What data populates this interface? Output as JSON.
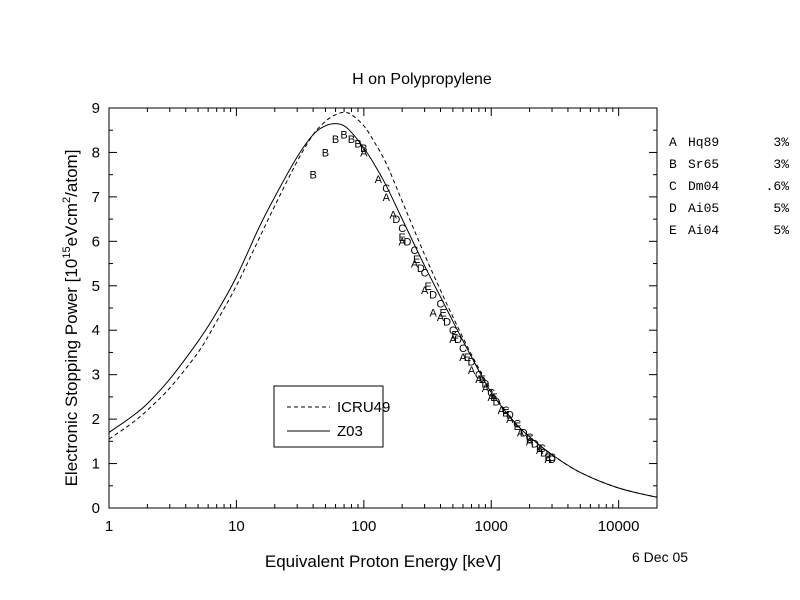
{
  "chart_data": {
    "type": "line",
    "title": "H on Polypropylene",
    "xlabel": "Equivalent Proton Energy [keV]",
    "ylabel_parts": [
      "Electronic Stopping Power [10",
      "15",
      "eVcm",
      "2",
      "/atom]"
    ],
    "x_scale": "log",
    "xlim": [
      1,
      20000
    ],
    "ylim": [
      0,
      9
    ],
    "x_ticks": [
      {
        "value": 1,
        "label": "1"
      },
      {
        "value": 10,
        "label": "10"
      },
      {
        "value": 100,
        "label": "100"
      },
      {
        "value": 1000,
        "label": "1000"
      },
      {
        "value": 10000,
        "label": "10000"
      }
    ],
    "y_ticks": [
      0,
      1,
      2,
      3,
      4,
      5,
      6,
      7,
      8,
      9
    ],
    "date_label": "6 Dec 05",
    "series": [
      {
        "name": "ICRU49",
        "style": "dashed",
        "x": [
          1,
          1.5,
          2,
          3,
          5,
          7,
          10,
          15,
          20,
          30,
          40,
          50,
          60,
          70,
          80,
          100,
          120,
          150,
          200,
          300,
          400,
          500,
          700,
          1000,
          1500,
          2000,
          3000,
          5000,
          10000,
          20000
        ],
        "y": [
          1.55,
          1.9,
          2.2,
          2.7,
          3.5,
          4.2,
          5.0,
          6.05,
          6.8,
          7.8,
          8.4,
          8.7,
          8.85,
          8.9,
          8.85,
          8.6,
          8.25,
          7.75,
          6.9,
          5.7,
          4.9,
          4.3,
          3.45,
          2.65,
          1.95,
          1.6,
          1.2,
          0.8,
          0.45,
          0.24
        ]
      },
      {
        "name": "Z03",
        "style": "solid",
        "x": [
          1,
          1.5,
          2,
          3,
          5,
          7,
          10,
          15,
          20,
          30,
          40,
          50,
          60,
          70,
          80,
          100,
          120,
          150,
          200,
          300,
          400,
          500,
          700,
          1000,
          1500,
          2000,
          3000,
          5000,
          10000,
          20000
        ],
        "y": [
          1.7,
          2.05,
          2.35,
          2.9,
          3.75,
          4.4,
          5.2,
          6.3,
          7.0,
          7.9,
          8.4,
          8.6,
          8.65,
          8.6,
          8.45,
          8.1,
          7.75,
          7.25,
          6.5,
          5.45,
          4.75,
          4.2,
          3.4,
          2.6,
          1.95,
          1.6,
          1.2,
          0.8,
          0.45,
          0.24
        ]
      }
    ],
    "measurements": [
      {
        "label": "A",
        "points": [
          [
            100,
            8.0
          ],
          [
            130,
            7.4
          ],
          [
            150,
            7.0
          ],
          [
            170,
            6.6
          ],
          [
            200,
            6.0
          ],
          [
            250,
            5.5
          ],
          [
            300,
            4.9
          ],
          [
            350,
            4.4
          ],
          [
            400,
            4.3
          ],
          [
            500,
            3.8
          ],
          [
            600,
            3.4
          ],
          [
            700,
            3.1
          ],
          [
            800,
            2.9
          ],
          [
            900,
            2.7
          ],
          [
            1000,
            2.5
          ],
          [
            1200,
            2.2
          ],
          [
            1400,
            2.0
          ],
          [
            1700,
            1.7
          ],
          [
            2000,
            1.5
          ],
          [
            2400,
            1.3
          ],
          [
            2800,
            1.1
          ]
        ]
      },
      {
        "label": "B",
        "points": [
          [
            40,
            7.5
          ],
          [
            50,
            8.0
          ],
          [
            60,
            8.3
          ],
          [
            70,
            8.4
          ],
          [
            80,
            8.3
          ],
          [
            90,
            8.2
          ],
          [
            100,
            8.1
          ]
        ]
      },
      {
        "label": "C",
        "points": [
          [
            150,
            7.2
          ],
          [
            200,
            6.3
          ],
          [
            250,
            5.8
          ],
          [
            300,
            5.3
          ],
          [
            400,
            4.6
          ],
          [
            500,
            4.0
          ],
          [
            600,
            3.6
          ],
          [
            800,
            3.0
          ],
          [
            1000,
            2.6
          ],
          [
            1300,
            2.2
          ],
          [
            1600,
            1.9
          ],
          [
            2000,
            1.6
          ],
          [
            2500,
            1.35
          ],
          [
            3000,
            1.15
          ]
        ]
      },
      {
        "label": "D",
        "points": [
          [
            180,
            6.5
          ],
          [
            220,
            6.0
          ],
          [
            280,
            5.4
          ],
          [
            350,
            4.8
          ],
          [
            450,
            4.2
          ],
          [
            550,
            3.8
          ],
          [
            700,
            3.3
          ],
          [
            900,
            2.8
          ],
          [
            1100,
            2.4
          ],
          [
            1400,
            2.1
          ],
          [
            1800,
            1.7
          ],
          [
            2200,
            1.45
          ],
          [
            2600,
            1.25
          ],
          [
            3000,
            1.1
          ]
        ]
      },
      {
        "label": "E",
        "points": [
          [
            200,
            6.1
          ],
          [
            260,
            5.6
          ],
          [
            320,
            5.0
          ],
          [
            420,
            4.4
          ],
          [
            520,
            3.9
          ],
          [
            650,
            3.4
          ],
          [
            850,
            2.9
          ],
          [
            1050,
            2.5
          ],
          [
            1300,
            2.15
          ],
          [
            1600,
            1.85
          ],
          [
            2000,
            1.55
          ],
          [
            2400,
            1.35
          ],
          [
            2800,
            1.15
          ]
        ]
      }
    ],
    "legend_box": {
      "placement": "lower-center",
      "entries": [
        {
          "label": "ICRU49",
          "style": "dashed"
        },
        {
          "label": "Z03",
          "style": "solid"
        }
      ]
    },
    "reference_table": [
      {
        "code": "A",
        "name": "Hq89",
        "error": "3%"
      },
      {
        "code": "B",
        "name": "Sr65",
        "error": "3%"
      },
      {
        "code": "C",
        "name": "Dm04",
        "error": ".6%"
      },
      {
        "code": "D",
        "name": "Ai05",
        "error": "5%"
      },
      {
        "code": "E",
        "name": "Ai04",
        "error": "5%"
      }
    ]
  }
}
